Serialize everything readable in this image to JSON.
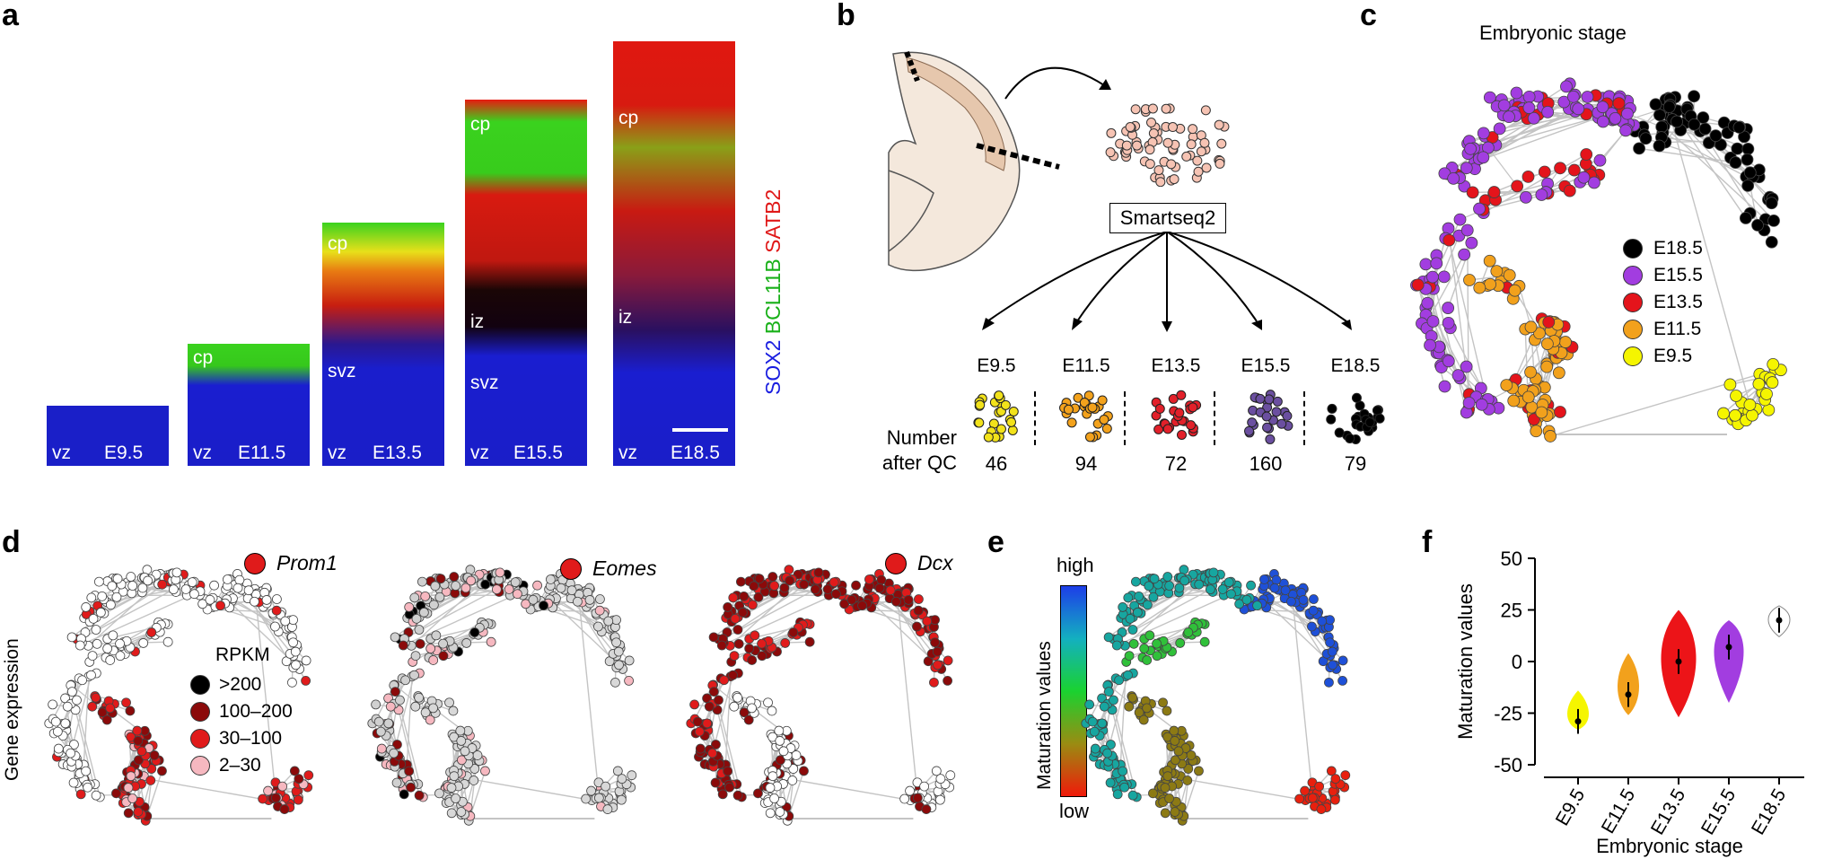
{
  "panels": {
    "a": "a",
    "b": "b",
    "c": "c",
    "d": "d",
    "e": "e",
    "f": "f"
  },
  "panel_a": {
    "stain": {
      "sox2": "SOX2",
      "bcl11b": "BCL11B",
      "satb2": "SATB2"
    },
    "images": [
      {
        "stage": "E9.5",
        "labels": {
          "vz": "vz"
        }
      },
      {
        "stage": "E11.5",
        "labels": {
          "vz": "vz",
          "cp": "cp"
        }
      },
      {
        "stage": "E13.5",
        "labels": {
          "vz": "vz",
          "svz": "svz",
          "cp": "cp"
        }
      },
      {
        "stage": "E15.5",
        "labels": {
          "vz": "vz",
          "svz": "svz",
          "iz": "iz",
          "cp": "cp"
        }
      },
      {
        "stage": "E18.5",
        "labels": {
          "vz": "vz",
          "iz": "iz",
          "cp": "cp"
        }
      }
    ]
  },
  "panel_b": {
    "method": "Smartseq2",
    "row_label_1": "Number",
    "row_label_2": "after QC",
    "groups": [
      {
        "stage": "E9.5",
        "count": "46",
        "color": "#f2e21a"
      },
      {
        "stage": "E11.5",
        "count": "94",
        "color": "#f3a21c"
      },
      {
        "stage": "E13.5",
        "count": "72",
        "color": "#e2202a"
      },
      {
        "stage": "E15.5",
        "count": "160",
        "color": "#6b4fa0"
      },
      {
        "stage": "E18.5",
        "count": "79",
        "color": "#000000"
      }
    ],
    "cell_color": "#f6c3b3"
  },
  "panel_c": {
    "title": "Embryonic stage",
    "legend": [
      {
        "label": "E18.5",
        "color": "#000000"
      },
      {
        "label": "E15.5",
        "color": "#a23de0"
      },
      {
        "label": "E13.5",
        "color": "#e4141b"
      },
      {
        "label": "E11.5",
        "color": "#f2a11c"
      },
      {
        "label": "E9.5",
        "color": "#f5f500"
      }
    ]
  },
  "panel_d": {
    "ylabel": "Gene expression",
    "genes": [
      "Prom1",
      "Eomes",
      "Dcx"
    ],
    "legend_title": "RPKM",
    "legend": [
      {
        "label": ">200",
        "color": "#000000"
      },
      {
        "label": "100–200",
        "color": "#8b0a0a"
      },
      {
        "label": "30–100",
        "color": "#e01b1b"
      },
      {
        "label": "2–30",
        "color": "#f6b8c0"
      }
    ]
  },
  "panel_e": {
    "ylabel": "Maturation values",
    "high": "high",
    "low": "low"
  },
  "chart_data": {
    "type": "violin",
    "xlabel": "Embryonic stage",
    "ylabel": "Maturation values",
    "ylim": [
      -50,
      50
    ],
    "yticks": [
      -50,
      -25,
      0,
      25,
      50
    ],
    "categories": [
      "E9.5",
      "E11.5",
      "E13.5",
      "E15.5",
      "E18.5"
    ],
    "colors": [
      "#f5f500",
      "#f2a11c",
      "#ec1418",
      "#a23de0",
      "#ffffff"
    ],
    "medians": [
      -29,
      -16,
      0,
      7,
      20
    ],
    "ranges": [
      [
        -33,
        -14
      ],
      [
        -26,
        4
      ],
      [
        -27,
        25
      ],
      [
        -20,
        20
      ],
      [
        12,
        27
      ]
    ]
  }
}
